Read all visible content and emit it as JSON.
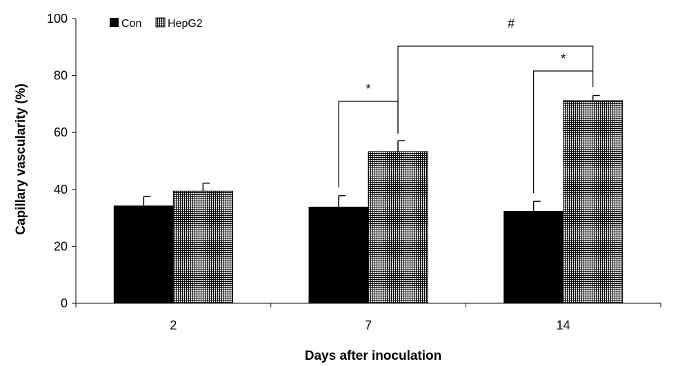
{
  "chart_data": {
    "type": "bar",
    "categories": [
      "2",
      "7",
      "14"
    ],
    "series": [
      {
        "name": "Con",
        "values": [
          34.2,
          33.8,
          32.3
        ],
        "errors": [
          3.3,
          4.0,
          3.5
        ],
        "color": "#000000",
        "pattern": "solid"
      },
      {
        "name": "HepG2",
        "values": [
          39.4,
          53.3,
          71.2
        ],
        "errors": [
          2.8,
          3.8,
          1.8
        ],
        "color": "#000000",
        "pattern": "grid"
      }
    ],
    "xlabel": "Days after inoculation",
    "ylabel": "Capillary vascularity (%)",
    "ylim": [
      0,
      100
    ],
    "yticks": [
      "0",
      "20",
      "40",
      "60",
      "80",
      "100"
    ],
    "legend_position": "top-left",
    "grid": false,
    "significance": [
      {
        "symbol": "*",
        "between": "Con 7 vs HepG2 7"
      },
      {
        "symbol": "*",
        "between": "Con 14 vs HepG2 14"
      },
      {
        "symbol": "#",
        "between": "HepG2 7 vs HepG2 14"
      }
    ]
  }
}
